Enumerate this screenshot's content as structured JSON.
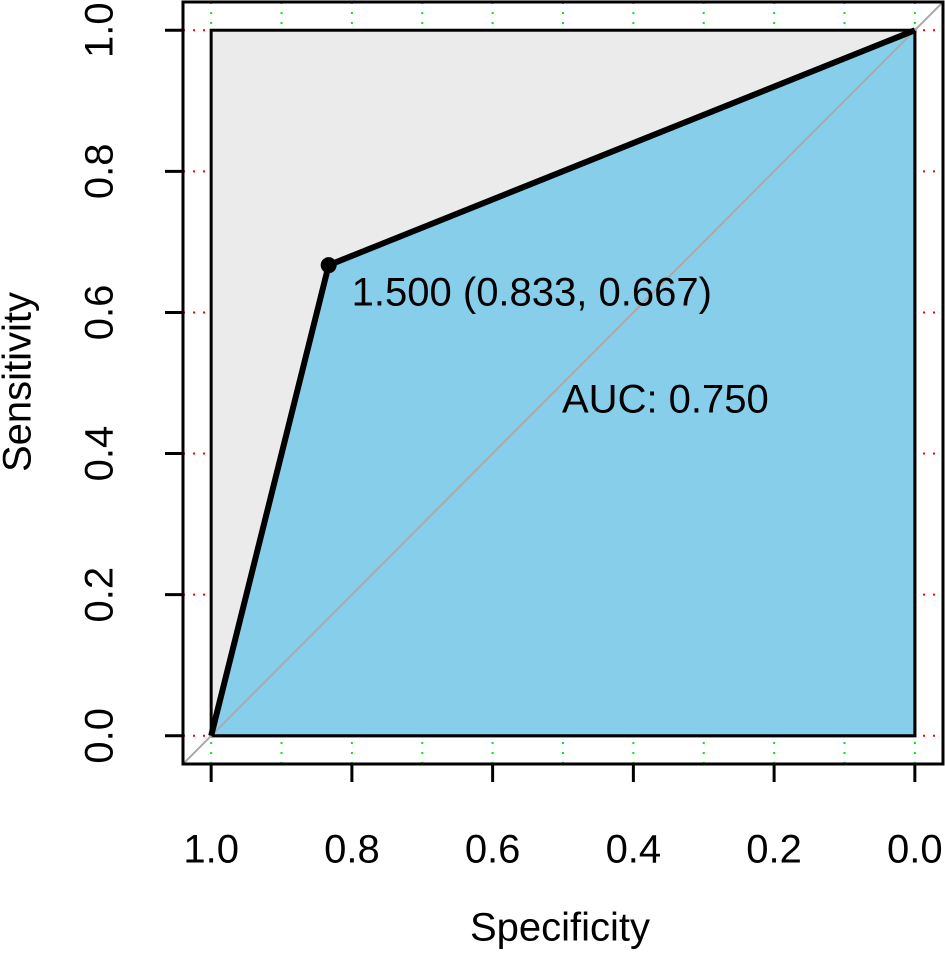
{
  "chart_data": {
    "type": "roc",
    "x_label": "Specificity",
    "y_label": "Sensitivity",
    "x": [
      1,
      0.833,
      0
    ],
    "values": [
      0,
      0.667,
      1
    ],
    "color": "#000000",
    "area_color": "#87ceeb",
    "background_color": "#ebebeb",
    "diagonal_color": "#aaaaaa",
    "threshold": {
      "x": 0.833,
      "y": 0.667,
      "label": "1.500 (0.833, 0.667)"
    },
    "auc_label": "AUC: 0.750",
    "xlim": [
      1.04,
      -0.04
    ],
    "ylim": [
      -0.04,
      1.04
    ],
    "xticks": [
      {
        "value": 1,
        "label": "1.0"
      },
      0.8,
      0.6,
      0.4,
      0.2,
      {
        "value": 0,
        "label": "0.0"
      }
    ],
    "yticks": [
      {
        "value": 0,
        "label": "0.0"
      },
      0.2,
      0.4,
      0.6,
      0.8,
      {
        "value": 1,
        "label": "1.0"
      }
    ],
    "xgrid": [
      1,
      0.9,
      0.8,
      0.7,
      0.6,
      0.5,
      0.4,
      0.3,
      0.2,
      0.1,
      0
    ],
    "xgrid_color": "#00ee00",
    "ygrid_color": "#ff0000",
    "grid": true
  }
}
